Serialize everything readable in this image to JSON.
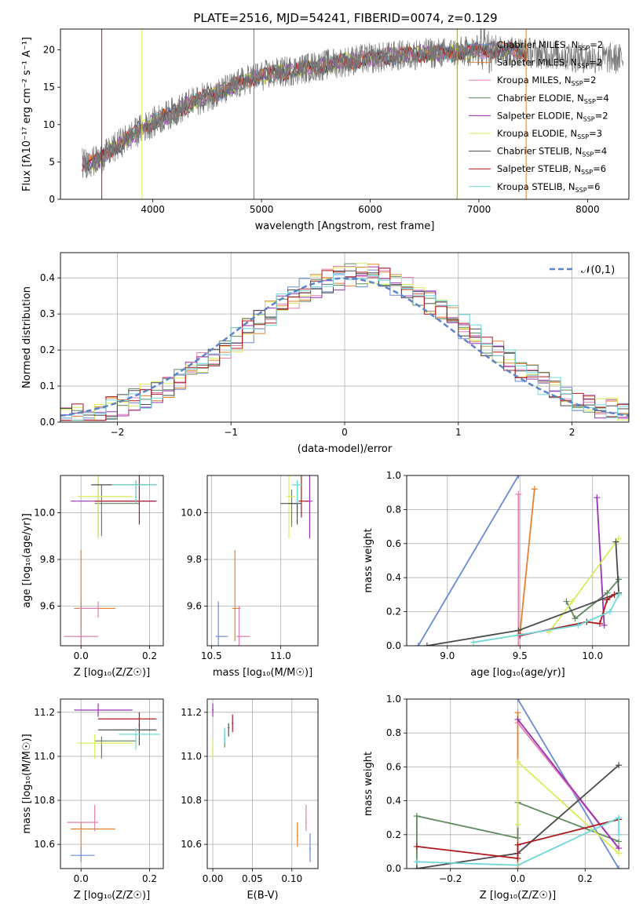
{
  "figure_title": "PLATE=2516, MJD=54241, FIBERID=0074, z=0.129",
  "colors": {
    "Chabrier MILES": "#6a8ad4",
    "Salpeter MILES": "#e8812f",
    "Kroupa MILES": "#e37fb0",
    "Chabrier ELODIE": "#5e8a5e",
    "Salpeter ELODIE": "#9b30b8",
    "Kroupa ELODIE": "#d9ec58",
    "Chabrier STELIB": "#4b4b4b",
    "Salpeter STELIB": "#b0161e",
    "Kroupa STELIB": "#6fd7d8"
  },
  "chart_data": [
    {
      "id": "spectrum",
      "type": "line",
      "title": "PLATE=2516, MJD=54241, FIBERID=0074, z=0.129",
      "xlabel": "wavelength [Angstrom, rest frame]",
      "ylabel": "Flux [fλ10⁻¹⁷ erg cm⁻² s⁻¹ A⁻¹]",
      "xlim": [
        3150,
        8380
      ],
      "ylim": [
        0,
        22.8
      ],
      "xticks": [
        "4000",
        "5000",
        "6000",
        "7000",
        "8000"
      ],
      "yticks": [
        "0",
        "5",
        "10",
        "15",
        "20"
      ],
      "grid": false,
      "legend_position": "right",
      "legend": [
        "Chabrier MILES, N_SSP=2",
        "Salpeter MILES, N_SSP=2",
        "Kroupa MILES, N_SSP=2",
        "Chabrier ELODIE, N_SSP=4",
        "Salpeter ELODIE, N_SSP=2",
        "Kroupa ELODIE, N_SSP=3",
        "Chabrier STELIB, N_SSP=4",
        "Salpeter STELIB, N_SSP=6",
        "Kroupa STELIB, N_SSP=6"
      ],
      "data_trend": {
        "x": [
          3350,
          3500,
          3700,
          3900,
          4100,
          4300,
          4500,
          4700,
          4900,
          5100,
          5300,
          5500,
          5700,
          5900,
          6100,
          6300,
          6500,
          6700,
          6900,
          7100,
          7300,
          7500,
          7700,
          7900,
          8100,
          8300
        ],
        "y": [
          4.8,
          5.2,
          7.5,
          9.5,
          11.0,
          12.5,
          13.8,
          14.8,
          16.2,
          16.8,
          17.3,
          17.8,
          18.3,
          18.7,
          19.0,
          19.3,
          19.5,
          19.6,
          19.8,
          20.0,
          19.9,
          19.6,
          19.4,
          19.0,
          18.9,
          18.8
        ]
      }
    },
    {
      "id": "residuals",
      "type": "bar",
      "xlabel": "(data-model)/error",
      "ylabel": "Normed distribution",
      "xlim": [
        -2.5,
        2.5
      ],
      "ylim": [
        0,
        0.47
      ],
      "xticks": [
        "−2",
        "−1",
        "0",
        "1",
        "2"
      ],
      "yticks": [
        "0.0",
        "0.1",
        "0.2",
        "0.3",
        "0.4"
      ],
      "grid": true,
      "legend_position": "top-right",
      "legend": [
        "𝒩(0,1)"
      ]
    },
    {
      "id": "age_vs_Z",
      "type": "scatter",
      "xlabel": "Z [log₁₀(Z/Z☉)]",
      "ylabel": "age  [log₁₀(age/yr)]",
      "xlim": [
        -0.06,
        0.24
      ],
      "ylim": [
        9.43,
        10.16
      ],
      "xticks": [
        "0.0",
        "0.2"
      ],
      "yticks": [
        "9.6",
        "9.8",
        "10.0"
      ],
      "grid": true
    },
    {
      "id": "age_vs_mass",
      "type": "scatter",
      "xlabel": "mass [log₁₀(M/M☉)]",
      "ylabel": "",
      "xlim": [
        10.47,
        11.27
      ],
      "ylim": [
        9.43,
        10.16
      ],
      "xticks": [
        "10.5",
        "11.0"
      ],
      "yticks": [
        "9.6",
        "9.8",
        "10.0"
      ],
      "grid": true
    },
    {
      "id": "weight_vs_age",
      "type": "line",
      "xlabel": "age  [log₁₀(age/yr)]",
      "ylabel": "mass weight",
      "xlim": [
        8.72,
        10.25
      ],
      "ylim": [
        0,
        1
      ],
      "xticks": [
        "9.0",
        "9.5",
        "10.0"
      ],
      "yticks": [
        "0.0",
        "0.2",
        "0.4",
        "0.6",
        "0.8",
        "1.0"
      ],
      "grid": true
    },
    {
      "id": "mass_vs_Z",
      "type": "scatter",
      "xlabel": "Z [log₁₀(Z/Z☉)]",
      "ylabel": "mass [log₁₀(M/M☉)]",
      "xlim": [
        -0.06,
        0.24
      ],
      "ylim": [
        10.49,
        11.26
      ],
      "xticks": [
        "0.0",
        "0.2"
      ],
      "yticks": [
        "10.6",
        "10.8",
        "11.0",
        "11.2"
      ],
      "grid": true
    },
    {
      "id": "mass_vs_ebv",
      "type": "scatter",
      "xlabel": "E(B-V)",
      "ylabel": "",
      "xlim": [
        -0.007,
        0.133
      ],
      "ylim": [
        10.49,
        11.26
      ],
      "xticks": [
        "0.00",
        "0.05",
        "0.10"
      ],
      "yticks": [
        "10.6",
        "10.8",
        "11.0",
        "11.2"
      ],
      "grid": true
    },
    {
      "id": "weight_vs_Z",
      "type": "line",
      "xlabel": "Z [log₁₀(Z/Z☉)]",
      "ylabel": "mass weight",
      "xlim": [
        -0.33,
        0.33
      ],
      "ylim": [
        0,
        1
      ],
      "xticks": [
        "−0.2",
        "0.0",
        "0.2"
      ],
      "yticks": [
        "0.0",
        "0.2",
        "0.4",
        "0.6",
        "0.8",
        "1.0"
      ],
      "grid": true
    }
  ]
}
